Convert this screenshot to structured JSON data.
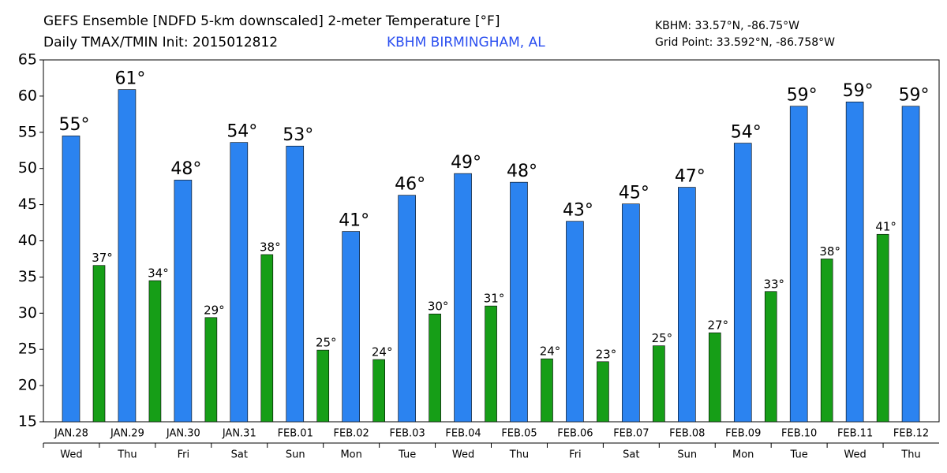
{
  "chart_data": {
    "type": "bar",
    "title": "GEFS Ensemble [NDFD 5-km downscaled] 2-meter Temperature [°F]",
    "subtitle": "Daily TMAX/TMIN Init: 2015012812",
    "station": "KBHM BIRMINGHAM, AL",
    "station_location": "KBHM: 33.57°N, -86.75°W",
    "grid_point": "Grid Point: 33.592°N, -86.758°W",
    "categories": [
      "JAN.28",
      "JAN.29",
      "JAN.30",
      "JAN.31",
      "FEB.01",
      "FEB.02",
      "FEB.03",
      "FEB.04",
      "FEB.05",
      "FEB.06",
      "FEB.07",
      "FEB.08",
      "FEB.09",
      "FEB.10",
      "FEB.11",
      "FEB.12"
    ],
    "weekdays": [
      "Wed",
      "Thu",
      "Fri",
      "Sat",
      "Sun",
      "Mon",
      "Tue",
      "Wed",
      "Thu",
      "Fri",
      "Sat",
      "Sun",
      "Mon",
      "Tue",
      "Wed",
      "Thu"
    ],
    "series": [
      {
        "color": "#2b83f0",
        "values": [
          54.5,
          60.9,
          48.4,
          53.6,
          53.1,
          41.3,
          46.3,
          49.3,
          48.1,
          42.7,
          45.1,
          47.4,
          53.5,
          58.6,
          59.2,
          58.6
        ],
        "value_labels": [
          "55°",
          "61°",
          "48°",
          "54°",
          "53°",
          "41°",
          "46°",
          "49°",
          "48°",
          "43°",
          "45°",
          "47°",
          "54°",
          "59°",
          "59°",
          "59°"
        ]
      },
      {
        "color": "#169e17",
        "values": [
          36.6,
          34.5,
          29.4,
          38.1,
          24.9,
          23.6,
          29.9,
          31.0,
          23.7,
          23.3,
          25.5,
          27.3,
          33.0,
          37.5,
          40.9,
          null
        ],
        "value_labels": [
          "37°",
          "34°",
          "29°",
          "38°",
          "25°",
          "24°",
          "30°",
          "31°",
          "24°",
          "23°",
          "25°",
          "27°",
          "33°",
          "38°",
          "41°",
          null
        ]
      }
    ],
    "ylim": [
      15,
      65
    ],
    "yticks": [
      15,
      20,
      25,
      30,
      35,
      40,
      45,
      50,
      55,
      60,
      65
    ],
    "grid": false
  }
}
